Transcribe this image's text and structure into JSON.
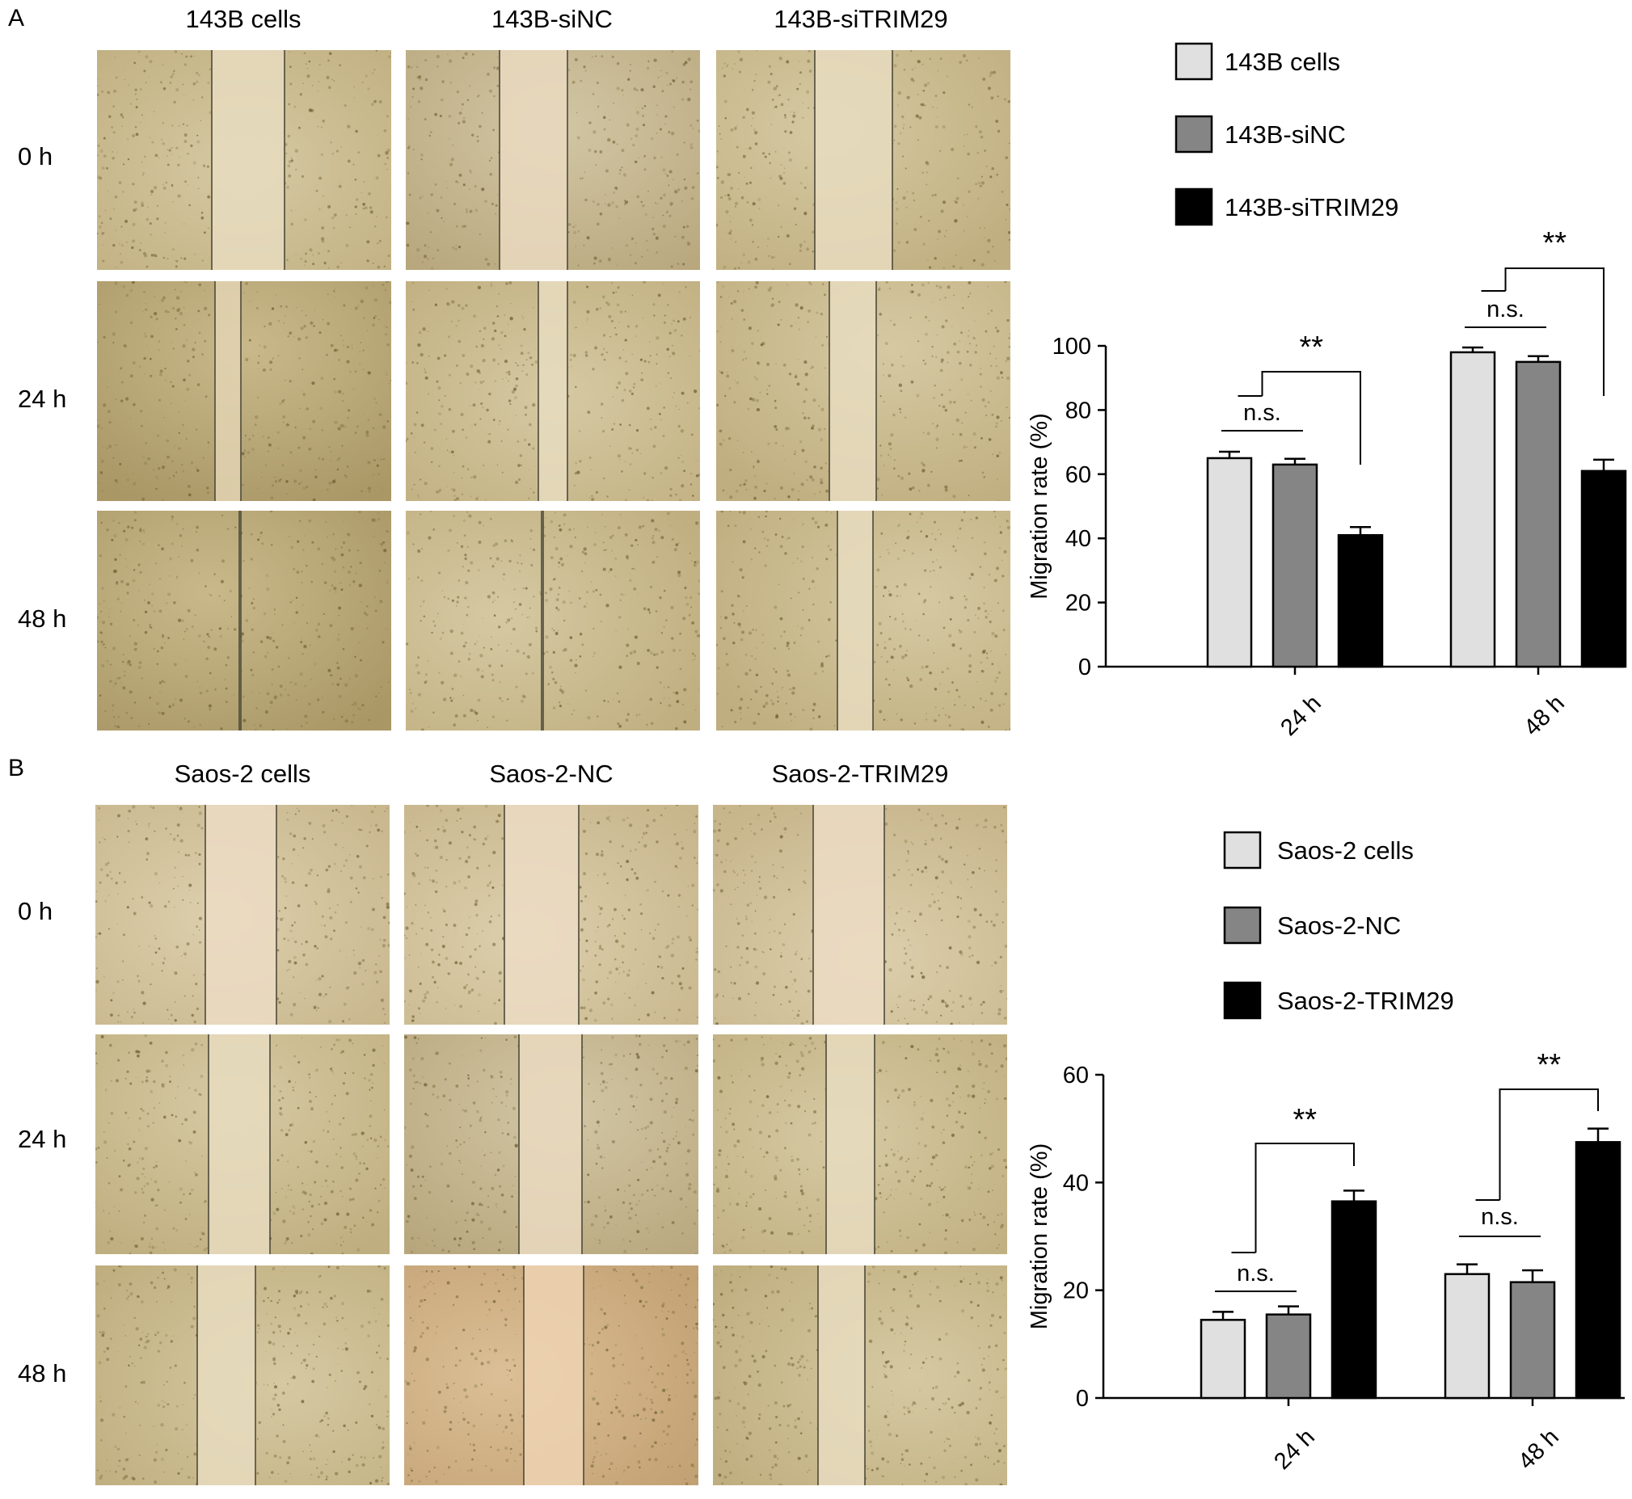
{
  "panels": [
    {
      "letter": "A",
      "columns": [
        "143B cells",
        "143B-siNC",
        "143B-siTRIM29"
      ],
      "rows": [
        "0 h",
        "24 h",
        "48 h"
      ],
      "legend_swatch_colors": [
        "#e0e0e0",
        "#858585",
        "#000000"
      ],
      "chart_data": {
        "type": "bar",
        "categories": [
          "24 h",
          "48 h"
        ],
        "ylabel": "Migration rate (%)",
        "ylim": [
          0,
          100
        ],
        "yticks": [
          0,
          20,
          40,
          60,
          80,
          100
        ],
        "series": [
          {
            "name": "143B cells",
            "color": "#e0e0e0",
            "values": [
              65,
              98
            ],
            "errors": [
              2,
              1.5
            ]
          },
          {
            "name": "143B-siNC",
            "color": "#858585",
            "values": [
              63,
              95
            ],
            "errors": [
              1.8,
              1.8
            ]
          },
          {
            "name": "143B-siTRIM29",
            "color": "#000000",
            "values": [
              41,
              61
            ],
            "errors": [
              2.5,
              3.5
            ]
          }
        ],
        "annotations": [
          {
            "category": "24 h",
            "ns": "n.s.",
            "sig": "**"
          },
          {
            "category": "48 h",
            "ns": "n.s.",
            "sig": "**"
          }
        ],
        "legend_position": "top"
      }
    },
    {
      "letter": "B",
      "columns": [
        "Saos-2 cells",
        "Saos-2-NC",
        "Saos-2-TRIM29"
      ],
      "rows": [
        "0 h",
        "24 h",
        "48 h"
      ],
      "legend_swatch_colors": [
        "#e0e0e0",
        "#858585",
        "#000000"
      ],
      "chart_data": {
        "type": "bar",
        "categories": [
          "24 h",
          "48 h"
        ],
        "ylabel": "Migration rate (%)",
        "ylim": [
          0,
          60
        ],
        "yticks": [
          0,
          20,
          40,
          60
        ],
        "series": [
          {
            "name": "Saos-2 cells",
            "color": "#e0e0e0",
            "values": [
              14.5,
              23
            ],
            "errors": [
              1.5,
              1.8
            ]
          },
          {
            "name": "Saos-2-NC",
            "color": "#858585",
            "values": [
              15.5,
              21.5
            ],
            "errors": [
              1.5,
              2.2
            ]
          },
          {
            "name": "Saos-2-TRIM29",
            "color": "#000000",
            "values": [
              36.5,
              47.5
            ],
            "errors": [
              2,
              2.5
            ]
          }
        ],
        "annotations": [
          {
            "category": "24 h",
            "ns": "n.s.",
            "sig": "**"
          },
          {
            "category": "48 h",
            "ns": "n.s.",
            "sig": "**"
          }
        ],
        "legend_position": "top"
      }
    }
  ]
}
